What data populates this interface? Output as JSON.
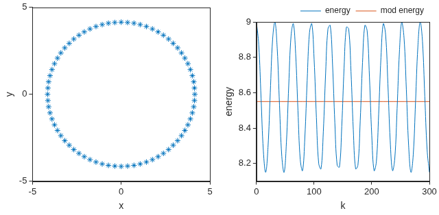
{
  "chart_data": [
    {
      "type": "scatter",
      "x_label": "x",
      "y_label": "y",
      "color": "#0072bd",
      "marker": "star",
      "xlim": [
        -5,
        5
      ],
      "xticks": [
        -5,
        0,
        5
      ],
      "ylim": [
        -5,
        5
      ],
      "yticks": [
        -5,
        0,
        5
      ],
      "grid": false,
      "x": [
        4.15,
        4.13,
        4.09,
        4.01,
        3.9,
        3.76,
        3.59,
        3.4,
        3.18,
        2.93,
        2.67,
        2.38,
        2.08,
        1.76,
        1.42,
        1.07,
        0.72,
        0.36,
        0,
        -0.36,
        -0.72,
        -1.07,
        -1.42,
        -1.76,
        -2.08,
        -2.38,
        -2.67,
        -2.93,
        -3.18,
        -3.4,
        -3.59,
        -3.76,
        -3.9,
        -4.01,
        -4.09,
        -4.13,
        -4.15,
        -4.13,
        -4.09,
        -4.01,
        -3.9,
        -3.76,
        -3.59,
        -3.4,
        -3.18,
        -2.93,
        -2.67,
        -2.38,
        -2.08,
        -1.76,
        -1.42,
        -1.07,
        -0.72,
        -0.36,
        0,
        0.36,
        0.72,
        1.07,
        1.42,
        1.76,
        2.08,
        2.38,
        2.67,
        2.93,
        3.18,
        3.4,
        3.59,
        3.76,
        3.9,
        4.01,
        4.09,
        4.13
      ],
      "values": [
        0,
        0.36,
        0.72,
        1.07,
        1.42,
        1.76,
        2.08,
        2.38,
        2.67,
        2.93,
        3.18,
        3.4,
        3.59,
        3.76,
        3.9,
        4.01,
        4.09,
        4.13,
        4.15,
        4.13,
        4.09,
        4.01,
        3.9,
        3.76,
        3.59,
        3.4,
        3.18,
        2.93,
        2.67,
        2.38,
        2.08,
        1.76,
        1.42,
        1.07,
        0.72,
        0.36,
        0,
        -0.36,
        -0.72,
        -1.07,
        -1.42,
        -1.76,
        -2.08,
        -2.38,
        -2.67,
        -2.93,
        -3.18,
        -3.4,
        -3.59,
        -3.76,
        -3.9,
        -4.01,
        -4.09,
        -4.13,
        -4.15,
        -4.13,
        -4.09,
        -4.01,
        -3.9,
        -3.76,
        -3.59,
        -3.4,
        -3.18,
        -2.93,
        -2.67,
        -2.38,
        -2.08,
        -1.76,
        -1.42,
        -1.07,
        -0.72,
        -0.36
      ]
    },
    {
      "type": "line",
      "x_label": "k",
      "y_label": "energy",
      "xlim": [
        0,
        300
      ],
      "xticks": [
        0,
        100,
        200,
        300
      ],
      "ylim": [
        8.1,
        9
      ],
      "yticks": [
        8.2,
        8.4,
        8.6,
        8.8,
        9
      ],
      "grid": false,
      "legend": "upper right",
      "series": [
        {
          "name": "energy",
          "color": "#0072bd",
          "x": [
            0,
            4,
            8,
            12,
            16,
            20,
            24,
            28,
            32,
            36,
            40,
            44,
            48,
            52,
            56,
            60,
            64,
            68,
            72,
            76,
            80,
            84,
            88,
            92,
            96,
            100,
            104,
            108,
            112,
            116,
            120,
            124,
            128,
            132,
            136,
            140,
            144,
            148,
            152,
            156,
            160,
            164,
            168,
            172,
            176,
            180,
            184,
            188,
            192,
            196,
            200,
            204,
            208,
            212,
            216,
            220,
            224,
            228,
            232,
            236,
            240,
            244,
            248,
            252,
            256,
            260,
            264,
            268,
            272,
            276,
            280,
            284,
            288,
            292,
            296,
            300
          ],
          "values": [
            9.0,
            8.87,
            8.57,
            8.27,
            8.15,
            8.29,
            8.6,
            8.9,
            9.0,
            8.85,
            8.53,
            8.24,
            8.15,
            8.32,
            8.64,
            8.92,
            8.99,
            8.82,
            8.5,
            8.22,
            8.16,
            8.35,
            8.67,
            8.94,
            8.99,
            8.79,
            8.46,
            8.2,
            8.17,
            8.38,
            8.71,
            8.96,
            8.98,
            8.76,
            8.43,
            8.19,
            8.18,
            8.41,
            8.74,
            8.97,
            8.96,
            8.72,
            8.39,
            8.17,
            8.19,
            8.44,
            8.77,
            8.98,
            8.95,
            8.69,
            8.36,
            8.16,
            8.21,
            8.48,
            8.8,
            8.99,
            8.93,
            8.65,
            8.33,
            8.16,
            8.23,
            8.51,
            8.83,
            9.0,
            8.91,
            8.62,
            8.3,
            8.15,
            8.25,
            8.55,
            8.86,
            9.0,
            8.89,
            8.58,
            8.28,
            8.15
          ]
        },
        {
          "name": "mod energy",
          "color": "#d95319",
          "x": [
            0,
            300
          ],
          "values": [
            8.55,
            8.55
          ]
        }
      ]
    }
  ]
}
